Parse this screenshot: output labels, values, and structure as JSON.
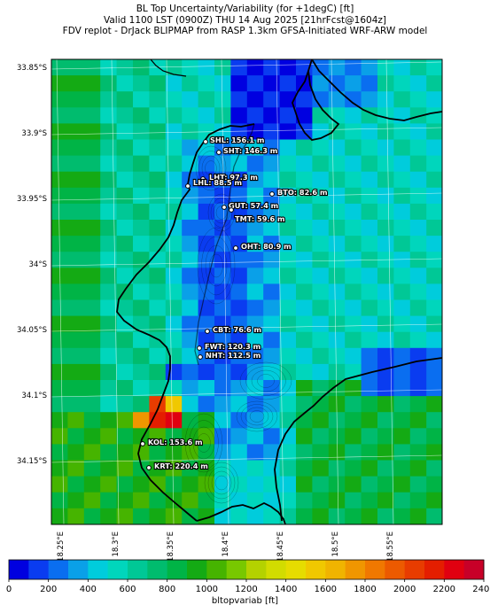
{
  "title": {
    "line1": "BL Top Uncertainty/Variability (for +1degC) [ft]",
    "line2": "Valid 1100 LST (0900Z) THU 14 Aug 2025 [21hrFcst@1604z]",
    "line3": "FDV replot - DrJack BLIPMAP from RASP 1.3km GFSA-Initiated WRF-ARW model"
  },
  "lat_labels": [
    "33.85°S",
    "33.9°S",
    "33.95°S",
    "34°S",
    "34.05°S",
    "34.1°S",
    "34.15°S"
  ],
  "lon_labels": [
    "18.25°E",
    "18.3°E",
    "18.35°E",
    "18.4°E",
    "18.45°E",
    "18.5°E",
    "18.55°E"
  ],
  "stations": [
    {
      "label": "SHL: 156.1 m"
    },
    {
      "label": "SHT: 146.3 m"
    },
    {
      "label": "LHT: 97.3 m"
    },
    {
      "label": "LHL: 88.5 m"
    },
    {
      "label": "BTO: 82.6 m"
    },
    {
      "label": "GUT: 57.4 m"
    },
    {
      "label": "TMT: 59.6 m"
    },
    {
      "label": "OHT: 80.9 m"
    },
    {
      "label": "CBT: 76.6 m"
    },
    {
      "label": "FWT: 120.3 m"
    },
    {
      "label": "NHT: 112.5 m"
    },
    {
      "label": "KOL: 153.6 m"
    },
    {
      "label": "KRT: 220.4 m"
    }
  ],
  "colorbar": {
    "label": "bltopvariab [ft]",
    "ticks": [
      "0",
      "200",
      "400",
      "600",
      "800",
      "1000",
      "1200",
      "1400",
      "1600",
      "1800",
      "2000",
      "2200",
      "2400"
    ],
    "colors": [
      "#0000e0",
      "#0a3cf0",
      "#0a6ef0",
      "#0aa0e8",
      "#00ccdc",
      "#00d6bc",
      "#00c896",
      "#00bc6e",
      "#00b446",
      "#14aa14",
      "#46b400",
      "#78c800",
      "#b4d200",
      "#d2dc00",
      "#e6dc00",
      "#f0c800",
      "#f0b400",
      "#f09600",
      "#f07800",
      "#ec5a00",
      "#e83c00",
      "#e41e00",
      "#e00010",
      "#c80028"
    ]
  },
  "map": {
    "ocean_color": "#00c8a0",
    "coast_color": "#000000"
  }
}
